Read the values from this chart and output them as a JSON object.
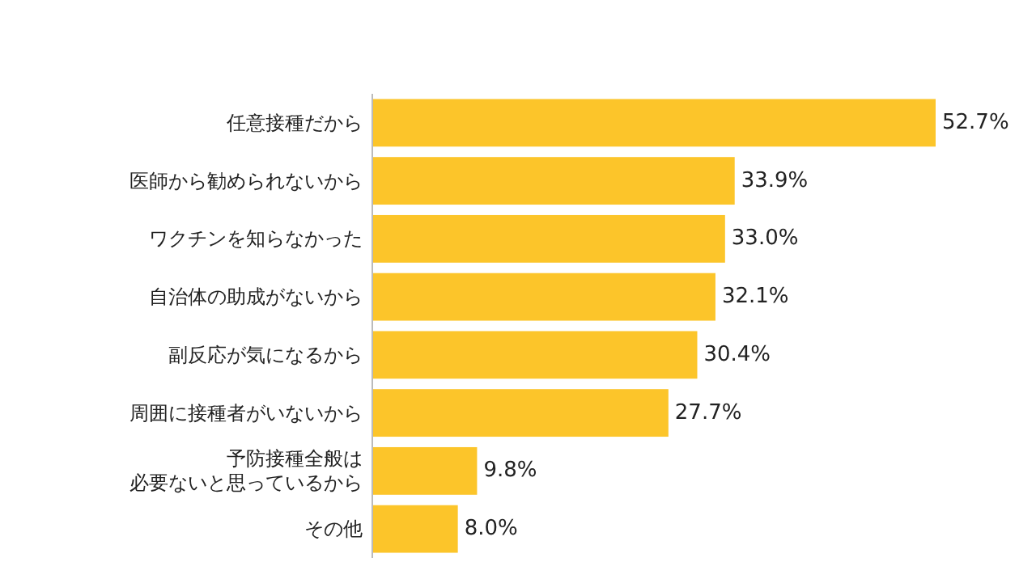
{
  "chart_data": {
    "type": "bar",
    "orientation": "horizontal",
    "categories": [
      "任意接種だから",
      "医師から勧められないから",
      "ワクチンを知らなかった",
      "自治体の助成がないから",
      "副反応が気になるから",
      "周囲に接種者がいないから",
      "予防接種全般は必要ないと思っているから",
      "その他"
    ],
    "values": [
      52.7,
      33.9,
      33.0,
      32.1,
      30.4,
      27.7,
      9.8,
      8.0
    ],
    "color": "#fcc52a",
    "data_labels": true,
    "value_labels": [
      "52.7%",
      "33.9%",
      "33.0%",
      "32.1%",
      "30.4%",
      "27.7%",
      "9.8%",
      "8.0%"
    ]
  }
}
